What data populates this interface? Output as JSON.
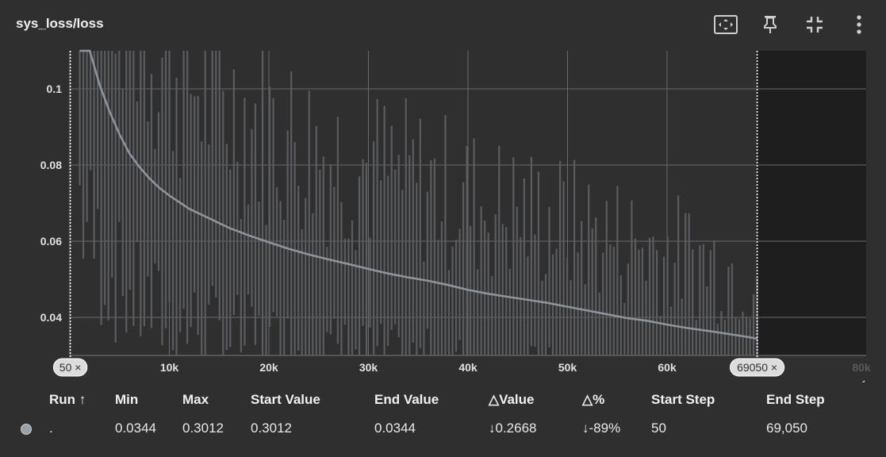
{
  "card": {
    "title": "sys_loss/loss"
  },
  "toolbar": [
    {
      "name": "fit-domain-icon",
      "tooltip": ""
    },
    {
      "name": "pin-icon",
      "tooltip": ""
    },
    {
      "name": "collapse-icon",
      "tooltip": ""
    },
    {
      "name": "more-vert-icon",
      "tooltip": ""
    }
  ],
  "chart_data": {
    "type": "line",
    "title": "",
    "xlabel": "",
    "ylabel": "",
    "xlim": [
      0,
      80000
    ],
    "ylim": [
      0.03,
      0.11
    ],
    "x_tick_labels": [
      "0k",
      "10k",
      "20k",
      "30k",
      "40k",
      "50k",
      "60k",
      "80k"
    ],
    "y_tick_labels": [
      "0.1",
      "0.08",
      "0.06",
      "0.04"
    ],
    "y_ticks": [
      0.1,
      0.08,
      0.06,
      0.04
    ],
    "x_ticks": [
      0,
      10000,
      20000,
      30000,
      40000,
      50000,
      60000,
      80000
    ],
    "grid": true,
    "range_markers": {
      "start": 50,
      "end": 69050,
      "start_label": "50 ×",
      "end_label": "69050 ×"
    },
    "series": [
      {
        "name": "",
        "role": "smoothed",
        "color": "#8d949c",
        "x": [
          1000,
          2000,
          3000,
          4000,
          5000,
          6000,
          7000,
          8000,
          9000,
          10000,
          12000,
          14000,
          16000,
          18000,
          20000,
          22000,
          24000,
          26000,
          28000,
          30000,
          32000,
          34000,
          36000,
          38000,
          40000,
          42000,
          44000,
          46000,
          48000,
          50000,
          52000,
          54000,
          56000,
          58000,
          60000,
          62000,
          64000,
          66000,
          68000,
          69050
        ],
        "y": [
          0.13,
          0.113,
          0.101,
          0.094,
          0.088,
          0.083,
          0.0795,
          0.0765,
          0.074,
          0.072,
          0.0685,
          0.066,
          0.0635,
          0.0615,
          0.0597,
          0.058,
          0.0565,
          0.0552,
          0.054,
          0.0527,
          0.0515,
          0.0505,
          0.0496,
          0.0485,
          0.0472,
          0.0462,
          0.0454,
          0.0446,
          0.0438,
          0.0428,
          0.0418,
          0.0408,
          0.0398,
          0.0391,
          0.0381,
          0.0372,
          0.0365,
          0.0357,
          0.0349,
          0.0344
        ]
      }
    ],
    "raw_spikes": {
      "color": "#5a5c60",
      "x_start": 1000,
      "x_end": 69050,
      "count": 190
    }
  },
  "stats": {
    "headers": {
      "run": "Run ↑",
      "min": "Min",
      "max": "Max",
      "start_value": "Start Value",
      "end_value": "End Value",
      "delta_value": "△Value",
      "delta_pct": "△%",
      "start_step": "Start Step",
      "end_step": "End Step"
    },
    "row": {
      "run": ".",
      "min": "0.0344",
      "max": "0.3012",
      "start_value": "0.3012",
      "end_value": "0.0344",
      "delta_value": "↓0.2668",
      "delta_pct": "↓-89%",
      "start_step": "50",
      "end_step": "69,050",
      "color": "#9aa1a9"
    }
  }
}
